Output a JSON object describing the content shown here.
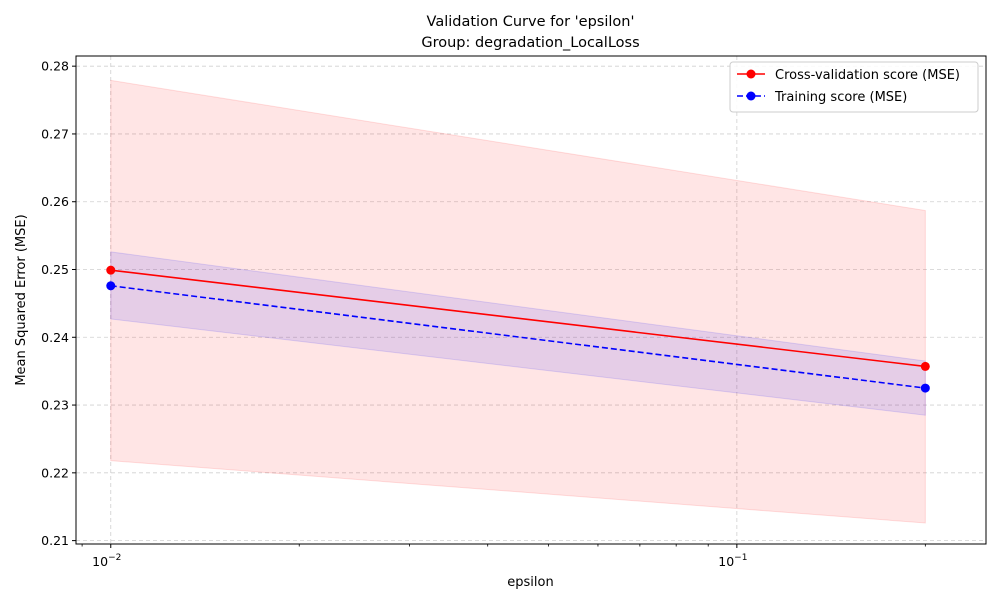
{
  "chart_data": {
    "type": "line",
    "title": "Validation Curve for 'epsilon'",
    "subtitle": "Group: degradation_LocalLoss",
    "xlabel": "epsilon",
    "ylabel": "Mean Squared Error (MSE)",
    "xscale": "log",
    "xlim": [
      0.0088,
      0.25
    ],
    "ylim": [
      0.2095,
      0.2815
    ],
    "x": [
      0.01,
      0.2
    ],
    "x_ticks": [
      {
        "value": 0.01,
        "base": "10",
        "exp": "−2"
      },
      {
        "value": 0.1,
        "base": "10",
        "exp": "−1"
      }
    ],
    "y_ticks": [
      {
        "value": 0.21,
        "label": "0.21"
      },
      {
        "value": 0.22,
        "label": "0.22"
      },
      {
        "value": 0.23,
        "label": "0.23"
      },
      {
        "value": 0.24,
        "label": "0.24"
      },
      {
        "value": 0.25,
        "label": "0.25"
      },
      {
        "value": 0.26,
        "label": "0.26"
      },
      {
        "value": 0.27,
        "label": "0.27"
      },
      {
        "value": 0.28,
        "label": "0.28"
      }
    ],
    "grid": true,
    "legend_position": "top-right",
    "series": [
      {
        "name": "Cross-validation score (MSE)",
        "values": [
          0.2499,
          0.2357
        ],
        "band_upper": [
          0.2779,
          0.2587
        ],
        "band_lower": [
          0.2218,
          0.2126
        ],
        "color": "#ff0000",
        "band_color": "#ff0000",
        "line_style": "solid",
        "marker": "circle"
      },
      {
        "name": "Training score (MSE)",
        "values": [
          0.2476,
          0.2325
        ],
        "band_upper": [
          0.2526,
          0.2365
        ],
        "band_lower": [
          0.2427,
          0.2285
        ],
        "color": "#0000ff",
        "band_color": "#0000ff",
        "line_style": "dashed",
        "marker": "circle"
      }
    ]
  }
}
